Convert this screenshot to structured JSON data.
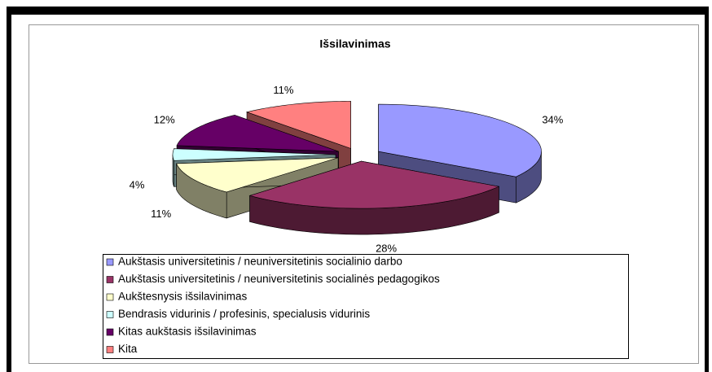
{
  "chart_data": {
    "type": "pie3d",
    "title": "Išsilavinimas",
    "categories": [
      "Aukštasis universitetinis / neuniversitetinis socialinio darbo",
      "Aukštasis universitetinis / neuniversitetinis socialinės pedagogikos",
      "Aukštesnysis išsilavinimas",
      "Bendrasis vidurinis / profesinis, specialusis vidurinis",
      "Kitas aukštasis išsilavinimas",
      "Kita"
    ],
    "values": [
      34,
      28,
      11,
      4,
      12,
      11
    ],
    "value_labels": [
      "34%",
      "28%",
      "11%",
      "4%",
      "12%",
      "11%"
    ],
    "colors": [
      "#9999ff",
      "#993366",
      "#ffffcc",
      "#ccffff",
      "#660066",
      "#ff8080"
    ],
    "legend": "bottom"
  }
}
